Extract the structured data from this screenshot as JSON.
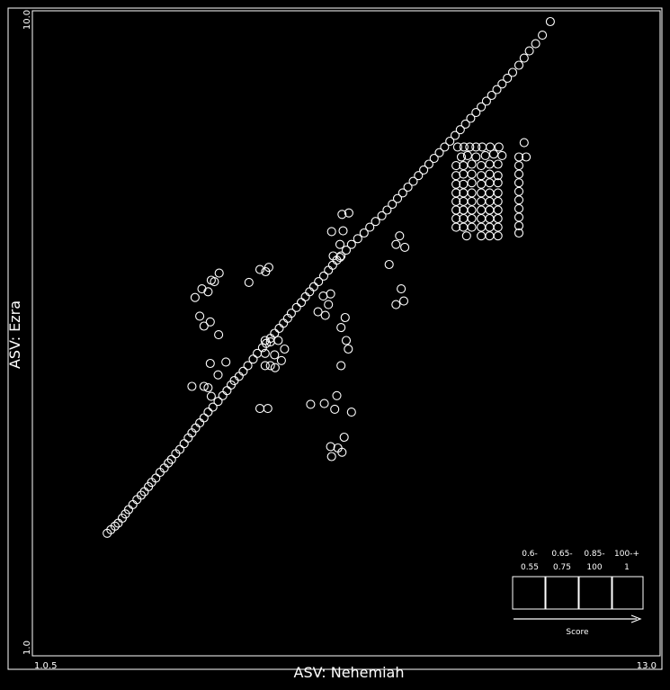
{
  "chart_data": {
    "type": "scatter",
    "title": "",
    "xlabel": "ASV: Nehemiah",
    "ylabel": "ASV: Ezra",
    "x_ticks": {
      "min_label": "1.0.5",
      "max_label": "13.0"
    },
    "y_ticks": {
      "min_label": "1.0",
      "max_label": "10.0"
    },
    "xlim": [
      1.0,
      13.0
    ],
    "ylim": [
      1.0,
      10.0
    ],
    "grid": false,
    "legend": {
      "placement": "bottom-right",
      "title": "Score",
      "bins": [
        {
          "range": "0.6-",
          "min": "0.55"
        },
        {
          "range": "0.65-",
          "min": "0.75"
        },
        {
          "range": "0.85-",
          "min": "100"
        },
        {
          "range": "100-+",
          "min": "1"
        }
      ]
    },
    "series": [
      {
        "points": [
          [
            2.43,
            2.71
          ],
          [
            2.5,
            2.76
          ],
          [
            2.58,
            2.81
          ],
          [
            2.64,
            2.85
          ],
          [
            2.72,
            2.92
          ],
          [
            2.78,
            2.98
          ],
          [
            2.84,
            3.04
          ],
          [
            2.92,
            3.11
          ],
          [
            3.0,
            3.18
          ],
          [
            3.08,
            3.24
          ],
          [
            3.14,
            3.29
          ],
          [
            3.22,
            3.36
          ],
          [
            3.28,
            3.42
          ],
          [
            3.36,
            3.48
          ],
          [
            3.44,
            3.56
          ],
          [
            3.52,
            3.62
          ],
          [
            3.6,
            3.69
          ],
          [
            3.66,
            3.74
          ],
          [
            3.74,
            3.82
          ],
          [
            3.82,
            3.88
          ],
          [
            3.9,
            3.96
          ],
          [
            3.98,
            4.04
          ],
          [
            4.05,
            4.11
          ],
          [
            4.12,
            4.18
          ],
          [
            4.2,
            4.25
          ],
          [
            4.28,
            4.32
          ],
          [
            4.36,
            4.4
          ],
          [
            4.45,
            4.47
          ],
          [
            4.55,
            4.55
          ],
          [
            4.64,
            4.63
          ],
          [
            4.72,
            4.7
          ],
          [
            4.8,
            4.78
          ],
          [
            4.86,
            4.84
          ],
          [
            4.95,
            4.9
          ],
          [
            5.03,
            4.97
          ],
          [
            5.12,
            5.05
          ],
          [
            5.22,
            5.14
          ],
          [
            5.3,
            5.22
          ],
          [
            5.4,
            5.3
          ],
          [
            5.47,
            5.36
          ],
          [
            5.55,
            5.43
          ],
          [
            5.63,
            5.5
          ],
          [
            5.72,
            5.57
          ],
          [
            5.8,
            5.64
          ],
          [
            5.88,
            5.71
          ],
          [
            5.95,
            5.78
          ],
          [
            6.05,
            5.86
          ],
          [
            6.14,
            5.93
          ],
          [
            6.22,
            6.01
          ],
          [
            6.3,
            6.08
          ],
          [
            6.38,
            6.15
          ],
          [
            6.47,
            6.22
          ],
          [
            6.57,
            6.3
          ],
          [
            6.66,
            6.38
          ],
          [
            6.74,
            6.45
          ],
          [
            6.82,
            6.52
          ],
          [
            6.9,
            6.58
          ],
          [
            7.0,
            6.66
          ],
          [
            7.1,
            6.74
          ],
          [
            7.22,
            6.82
          ],
          [
            7.34,
            6.9
          ],
          [
            7.45,
            6.98
          ],
          [
            7.56,
            7.06
          ],
          [
            7.68,
            7.14
          ],
          [
            7.78,
            7.22
          ],
          [
            7.88,
            7.3
          ],
          [
            7.98,
            7.38
          ],
          [
            8.08,
            7.46
          ],
          [
            8.18,
            7.54
          ],
          [
            8.28,
            7.62
          ],
          [
            8.38,
            7.7
          ],
          [
            8.48,
            7.78
          ],
          [
            8.58,
            7.86
          ],
          [
            8.68,
            7.94
          ],
          [
            8.78,
            8.02
          ],
          [
            8.88,
            8.1
          ],
          [
            8.98,
            8.18
          ],
          [
            9.08,
            8.26
          ],
          [
            9.18,
            8.34
          ],
          [
            9.28,
            8.42
          ],
          [
            9.38,
            8.5
          ],
          [
            9.48,
            8.58
          ],
          [
            9.58,
            8.66
          ],
          [
            9.68,
            8.74
          ],
          [
            9.78,
            8.82
          ],
          [
            9.88,
            8.9
          ],
          [
            9.98,
            8.98
          ],
          [
            10.08,
            9.06
          ],
          [
            10.18,
            9.14
          ],
          [
            10.3,
            9.24
          ],
          [
            10.4,
            9.34
          ],
          [
            10.5,
            9.44
          ],
          [
            10.62,
            9.54
          ],
          [
            10.75,
            9.66
          ],
          [
            10.9,
            9.85
          ],
          [
            4.11,
            6.0
          ],
          [
            4.24,
            6.12
          ],
          [
            4.42,
            6.24
          ],
          [
            4.36,
            6.08
          ],
          [
            4.48,
            6.22
          ],
          [
            4.57,
            6.34
          ],
          [
            5.14,
            6.21
          ],
          [
            5.35,
            6.39
          ],
          [
            5.52,
            6.42
          ],
          [
            5.46,
            6.36
          ],
          [
            6.75,
            6.58
          ],
          [
            6.88,
            6.56
          ],
          [
            6.88,
            6.74
          ],
          [
            6.72,
            6.92
          ],
          [
            6.94,
            6.93
          ],
          [
            6.92,
            7.16
          ],
          [
            7.05,
            7.18
          ],
          [
            7.95,
            6.74
          ],
          [
            8.12,
            6.7
          ],
          [
            8.02,
            6.86
          ],
          [
            5.35,
            4.45
          ],
          [
            5.5,
            4.45
          ],
          [
            6.32,
            4.51
          ],
          [
            6.58,
            4.52
          ],
          [
            6.82,
            4.63
          ],
          [
            6.78,
            4.44
          ],
          [
            7.1,
            4.4
          ],
          [
            6.7,
            3.92
          ],
          [
            6.84,
            3.9
          ],
          [
            6.72,
            3.78
          ],
          [
            6.92,
            3.84
          ],
          [
            6.96,
            4.05
          ],
          [
            4.05,
            4.76
          ],
          [
            4.28,
            4.76
          ],
          [
            4.36,
            4.74
          ],
          [
            4.42,
            4.62
          ],
          [
            4.4,
            5.08
          ],
          [
            4.55,
            4.92
          ],
          [
            4.7,
            5.1
          ],
          [
            5.45,
            5.05
          ],
          [
            5.55,
            5.05
          ],
          [
            5.64,
            5.02
          ],
          [
            5.45,
            5.22
          ],
          [
            5.63,
            5.2
          ],
          [
            5.82,
            5.28
          ],
          [
            5.76,
            5.12
          ],
          [
            6.9,
            5.05
          ],
          [
            7.04,
            5.28
          ],
          [
            7.0,
            5.4
          ],
          [
            6.98,
            5.72
          ],
          [
            6.9,
            5.58
          ],
          [
            4.28,
            5.6
          ],
          [
            4.4,
            5.66
          ],
          [
            4.2,
            5.74
          ],
          [
            4.56,
            5.48
          ],
          [
            5.45,
            5.4
          ],
          [
            5.55,
            5.38
          ],
          [
            5.7,
            5.4
          ],
          [
            6.46,
            5.8
          ],
          [
            6.56,
            6.02
          ],
          [
            6.66,
            5.9
          ],
          [
            6.6,
            5.75
          ],
          [
            6.7,
            6.05
          ],
          [
            7.95,
            5.9
          ],
          [
            8.1,
            5.95
          ],
          [
            8.05,
            6.12
          ],
          [
            7.82,
            6.46
          ],
          [
            9.13,
            8.1
          ],
          [
            9.25,
            8.1
          ],
          [
            9.36,
            8.1
          ],
          [
            9.48,
            8.1
          ],
          [
            9.6,
            8.1
          ],
          [
            9.75,
            8.1
          ],
          [
            9.92,
            8.1
          ],
          [
            9.2,
            7.96
          ],
          [
            9.32,
            7.98
          ],
          [
            9.48,
            7.96
          ],
          [
            9.66,
            7.98
          ],
          [
            9.82,
            8.0
          ],
          [
            9.98,
            7.98
          ],
          [
            9.1,
            7.84
          ],
          [
            9.24,
            7.84
          ],
          [
            9.4,
            7.86
          ],
          [
            9.58,
            7.84
          ],
          [
            9.74,
            7.86
          ],
          [
            9.9,
            7.86
          ],
          [
            9.1,
            7.7
          ],
          [
            9.24,
            7.72
          ],
          [
            9.4,
            7.72
          ],
          [
            9.58,
            7.7
          ],
          [
            9.74,
            7.72
          ],
          [
            9.9,
            7.7
          ],
          [
            9.1,
            7.58
          ],
          [
            9.24,
            7.58
          ],
          [
            9.4,
            7.6
          ],
          [
            9.58,
            7.58
          ],
          [
            9.74,
            7.6
          ],
          [
            9.9,
            7.6
          ],
          [
            9.1,
            7.46
          ],
          [
            9.24,
            7.46
          ],
          [
            9.4,
            7.46
          ],
          [
            9.58,
            7.46
          ],
          [
            9.74,
            7.46
          ],
          [
            9.9,
            7.46
          ],
          [
            9.1,
            7.34
          ],
          [
            9.24,
            7.34
          ],
          [
            9.4,
            7.34
          ],
          [
            9.58,
            7.34
          ],
          [
            9.74,
            7.34
          ],
          [
            9.9,
            7.34
          ],
          [
            9.1,
            7.22
          ],
          [
            9.24,
            7.22
          ],
          [
            9.4,
            7.22
          ],
          [
            9.58,
            7.22
          ],
          [
            9.74,
            7.22
          ],
          [
            9.9,
            7.22
          ],
          [
            9.1,
            7.1
          ],
          [
            9.24,
            7.1
          ],
          [
            9.4,
            7.1
          ],
          [
            9.58,
            7.1
          ],
          [
            9.74,
            7.1
          ],
          [
            9.9,
            7.1
          ],
          [
            9.1,
            6.98
          ],
          [
            9.24,
            6.98
          ],
          [
            9.4,
            6.98
          ],
          [
            9.58,
            6.98
          ],
          [
            9.74,
            6.98
          ],
          [
            9.9,
            6.98
          ],
          [
            9.3,
            6.86
          ],
          [
            9.58,
            6.86
          ],
          [
            9.74,
            6.86
          ],
          [
            9.9,
            6.86
          ],
          [
            10.3,
            7.96
          ],
          [
            10.3,
            7.84
          ],
          [
            10.3,
            7.72
          ],
          [
            10.3,
            7.6
          ],
          [
            10.3,
            7.48
          ],
          [
            10.3,
            7.36
          ],
          [
            10.3,
            7.24
          ],
          [
            10.3,
            7.12
          ],
          [
            10.3,
            7.0
          ],
          [
            10.3,
            6.9
          ],
          [
            10.4,
            8.16
          ],
          [
            10.44,
            7.96
          ]
        ]
      }
    ]
  }
}
